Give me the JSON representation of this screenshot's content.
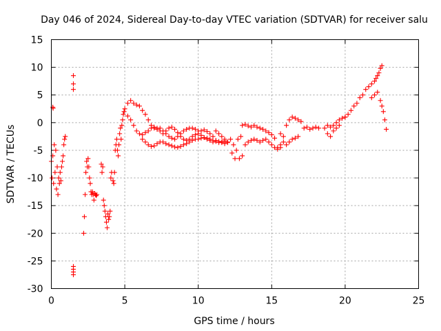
{
  "chart_data": {
    "type": "scatter",
    "title": "Day 046 of 2024, Sidereal Day-to-day VTEC variation (SDTVAR) for receiver salu",
    "xlabel": "GPS time / hours",
    "ylabel": "SDTVAR / TECUs",
    "xlim": [
      0,
      25
    ],
    "ylim": [
      -30,
      15
    ],
    "xticks": [
      "0",
      "5",
      "10",
      "15",
      "20",
      "25"
    ],
    "yticks": [
      "-30",
      "-25",
      "-20",
      "-15",
      "-10",
      "-5",
      "0",
      "5",
      "10",
      "15"
    ],
    "grid": true,
    "marker": "+",
    "color": "#ff0000",
    "series": [
      {
        "name": "SDTVAR",
        "x": [
          0.0,
          0.05,
          0.1,
          0.15,
          0.2,
          0.25,
          0.3,
          0.35,
          0.4,
          0.45,
          0.5,
          0.55,
          0.6,
          0.65,
          0.7,
          0.75,
          0.8,
          0.85,
          0.9,
          0.95,
          0.1,
          0.12,
          1.5,
          1.5,
          1.5,
          1.5,
          1.5,
          1.5,
          1.5,
          2.2,
          2.25,
          2.3,
          2.35,
          2.4,
          2.45,
          2.5,
          2.55,
          2.6,
          2.65,
          2.7,
          2.75,
          2.8,
          2.85,
          2.9,
          2.95,
          3.0,
          3.05,
          3.1,
          3.4,
          3.45,
          3.5,
          3.55,
          3.6,
          3.65,
          3.7,
          3.75,
          3.8,
          3.85,
          3.9,
          3.95,
          4.0,
          4.05,
          4.1,
          4.2,
          4.25,
          4.3,
          4.35,
          4.4,
          4.45,
          4.5,
          4.55,
          4.6,
          4.65,
          4.7,
          4.75,
          4.8,
          4.85,
          4.9,
          4.95,
          5.0,
          5.2,
          5.4,
          5.6,
          5.8,
          6.0,
          6.2,
          6.4,
          6.6,
          6.8,
          7.0,
          7.2,
          7.4,
          7.6,
          7.8,
          8.0,
          8.2,
          8.4,
          8.6,
          8.8,
          9.0,
          9.2,
          9.4,
          9.6,
          9.8,
          10.0,
          10.2,
          10.4,
          10.6,
          10.8,
          11.0,
          11.2,
          11.4,
          11.6,
          11.8,
          12.0,
          12.2,
          12.4,
          12.6,
          12.8,
          13.0,
          5.2,
          5.4,
          5.6,
          5.8,
          6.0,
          6.2,
          6.4,
          6.6,
          6.8,
          7.0,
          7.2,
          7.4,
          7.6,
          7.8,
          8.0,
          8.2,
          8.4,
          8.6,
          8.8,
          9.0,
          9.2,
          9.4,
          9.6,
          9.8,
          10.0,
          10.2,
          10.4,
          10.6,
          10.8,
          11.0,
          11.2,
          11.4,
          11.6,
          11.8,
          6.2,
          6.4,
          6.6,
          6.8,
          7.0,
          7.2,
          7.4,
          7.6,
          7.8,
          8.0,
          8.2,
          8.4,
          8.6,
          8.8,
          9.0,
          9.2,
          9.4,
          9.6,
          9.8,
          10.0,
          10.2,
          10.4,
          10.6,
          10.8,
          11.0,
          11.2,
          11.4,
          11.6,
          11.8,
          12.0,
          12.3,
          12.5,
          12.7,
          12.9,
          13.0,
          13.2,
          13.4,
          13.6,
          13.8,
          14.0,
          14.2,
          14.4,
          14.6,
          14.8,
          15.0,
          15.2,
          13.2,
          13.4,
          13.6,
          13.8,
          14.0,
          14.2,
          14.4,
          14.6,
          14.8,
          15.0,
          15.2,
          15.4,
          15.6,
          15.6,
          15.8,
          16.0,
          16.2,
          16.4,
          16.6,
          16.8,
          17.0,
          15.4,
          15.6,
          15.8,
          16.0,
          16.2,
          16.4,
          16.6,
          16.8,
          17.2,
          17.4,
          17.6,
          17.8,
          18.0,
          18.2,
          18.6,
          18.8,
          19.0,
          19.2,
          19.4,
          19.6,
          19.8,
          20.0,
          18.8,
          19.0,
          19.2,
          19.4,
          19.6,
          20.0,
          20.2,
          20.4,
          20.6,
          20.8,
          21.0,
          21.2,
          21.4,
          21.6,
          21.8,
          22.0,
          22.1,
          22.2,
          22.3,
          22.4,
          22.5,
          21.8,
          22.0,
          22.2,
          22.4,
          22.5,
          22.6,
          22.7,
          22.8
        ],
        "y": [
          -7,
          -10,
          -6,
          -11,
          -4,
          -9,
          -5,
          -12,
          -8,
          -13,
          -10,
          -11,
          -9,
          -10.5,
          -8,
          -7,
          -6,
          -4,
          -3,
          -2.5,
          2.8,
          2.6,
          8.5,
          7,
          6,
          -26,
          -26.5,
          -27,
          -27.5,
          -20,
          -17,
          -13,
          -9,
          -7,
          -8,
          -6.5,
          -8,
          -10,
          -11,
          -12.5,
          -13,
          -12.5,
          -13,
          -14,
          -12.8,
          -13,
          -13.2,
          -13,
          -7.5,
          -9,
          -8,
          -14,
          -15,
          -16,
          -17,
          -18,
          -19,
          -16.5,
          -17.5,
          -17,
          -16,
          -10,
          -9,
          -10.5,
          -11,
          -9,
          -5,
          -4,
          -3,
          -5,
          -6,
          -4,
          -2,
          -1,
          -3,
          -0.5,
          0.5,
          1.5,
          2,
          2.5,
          3.5,
          4,
          3.5,
          3.2,
          3,
          2.2,
          1.5,
          0.5,
          -0.5,
          -1,
          -1.2,
          -1,
          -1.5,
          -2,
          -2.5,
          -2.8,
          -3,
          -2.5,
          -2,
          -1.5,
          -1.2,
          -1,
          -1,
          -1.2,
          -1.5,
          -1.5,
          -1.3,
          -1.6,
          -2,
          -2.5,
          -1.5,
          -2,
          -2.5,
          -3,
          -3.5,
          -3,
          -4,
          -5,
          -6.5,
          -6,
          1.2,
          0.5,
          -0.5,
          -1.5,
          -2,
          -2.2,
          -1.8,
          -1.5,
          -1,
          -0.8,
          -1,
          -1.5,
          -2,
          -1.5,
          -1,
          -0.8,
          -1.2,
          -1.8,
          -2.5,
          -3,
          -3.2,
          -3,
          -2.5,
          -2.2,
          -2,
          -2.3,
          -2.7,
          -3,
          -3.2,
          -3.5,
          -3.2,
          -3.4,
          -3.6,
          -3.8,
          -3,
          -3.5,
          -4,
          -4.3,
          -4.2,
          -3.8,
          -3.5,
          -3.5,
          -3.8,
          -4,
          -4.2,
          -4.4,
          -4.5,
          -4.3,
          -4,
          -3.8,
          -3.5,
          -3.2,
          -3,
          -3,
          -2.8,
          -2.7,
          -2.8,
          -3,
          -3.2,
          -3.4,
          -3.6,
          -3.5,
          -3.3,
          -3.6,
          -5.5,
          -6.5,
          -3,
          -2.5,
          -0.5,
          -0.3,
          -0.6,
          -0.8,
          -0.5,
          -0.8,
          -1,
          -1.2,
          -1.5,
          -1.8,
          -2.2,
          -2.8,
          -4,
          -3.5,
          -3.2,
          -3,
          -3.2,
          -3.5,
          -3.2,
          -3,
          -3.5,
          -4,
          -4.5,
          -4.8,
          -4.5,
          -2,
          -2.5,
          -0.5,
          0.5,
          1,
          0.8,
          0.5,
          0.2,
          -4.5,
          -4,
          -3.5,
          -4,
          -3.5,
          -3,
          -2.8,
          -2.5,
          -1,
          -0.8,
          -1.2,
          -1,
          -0.8,
          -1,
          -1,
          -0.5,
          -0.8,
          -0.5,
          0,
          0.5,
          0.8,
          1,
          -2,
          -2.5,
          -1.5,
          -1,
          -0.5,
          1,
          1.5,
          2.2,
          3,
          3.5,
          4.5,
          5,
          6,
          6.5,
          7,
          7.5,
          8,
          8.5,
          9,
          9.8,
          10.3,
          4.5,
          5,
          5.5,
          4,
          3,
          2,
          0.5,
          -1.2
        ]
      }
    ]
  }
}
